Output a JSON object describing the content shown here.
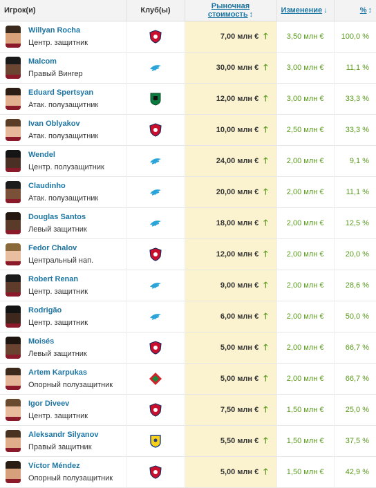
{
  "header": {
    "player_label": "Игрок(и)",
    "club_label": "Клуб(ы)",
    "market_value_label": "Рыночная стоимость",
    "market_value_sort_icon": "↕",
    "change_label": "Изменение",
    "change_sort_icon": "↓",
    "percent_label": "%",
    "percent_sort_icon": "↕"
  },
  "rows": [
    {
      "name": "Willyan Rocha",
      "position": "Центр. защитник",
      "club_crest": "cska-crest",
      "market_value": "7,00 млн €",
      "change": "3,50 млн €",
      "percent": "100,0 %"
    },
    {
      "name": "Malcom",
      "position": "Правый Вингер",
      "club_crest": "zenit-crest",
      "market_value": "30,00 млн €",
      "change": "3,00 млн €",
      "percent": "11,1 %"
    },
    {
      "name": "Eduard Spertsyan",
      "position": "Атак. полузащитник",
      "club_crest": "krasnodar-crest",
      "market_value": "12,00 млн €",
      "change": "3,00 млн €",
      "percent": "33,3 %"
    },
    {
      "name": "Ivan Oblyakov",
      "position": "Атак. полузащитник",
      "club_crest": "cska-crest",
      "market_value": "10,00 млн €",
      "change": "2,50 млн €",
      "percent": "33,3 %"
    },
    {
      "name": "Wendel",
      "position": "Центр. полузащитник",
      "club_crest": "zenit-crest",
      "market_value": "24,00 млн €",
      "change": "2,00 млн €",
      "percent": "9,1 %"
    },
    {
      "name": "Claudinho",
      "position": "Атак. полузащитник",
      "club_crest": "zenit-crest",
      "market_value": "20,00 млн €",
      "change": "2,00 млн €",
      "percent": "11,1 %"
    },
    {
      "name": "Douglas Santos",
      "position": "Левый защитник",
      "club_crest": "zenit-crest",
      "market_value": "18,00 млн €",
      "change": "2,00 млн €",
      "percent": "12,5 %"
    },
    {
      "name": "Fedor Chalov",
      "position": "Центральный нап.",
      "club_crest": "cska-crest",
      "market_value": "12,00 млн €",
      "change": "2,00 млн €",
      "percent": "20,0 %"
    },
    {
      "name": "Robert Renan",
      "position": "Центр. защитник",
      "club_crest": "zenit-crest",
      "market_value": "9,00 млн €",
      "change": "2,00 млн €",
      "percent": "28,6 %"
    },
    {
      "name": "Rodrigão",
      "position": "Центр. защитник",
      "club_crest": "zenit-crest",
      "market_value": "6,00 млн €",
      "change": "2,00 млн €",
      "percent": "50,0 %"
    },
    {
      "name": "Moisés",
      "position": "Левый защитник",
      "club_crest": "cska-crest",
      "market_value": "5,00 млн €",
      "change": "2,00 млн €",
      "percent": "66,7 %"
    },
    {
      "name": "Artem Karpukas",
      "position": "Опорный полузащитник",
      "club_crest": "lokomotiv-crest",
      "market_value": "5,00 млн €",
      "change": "2,00 млн €",
      "percent": "66,7 %"
    },
    {
      "name": "Igor Diveev",
      "position": "Центр. защитник",
      "club_crest": "cska-crest",
      "market_value": "7,50 млн €",
      "change": "1,50 млн €",
      "percent": "25,0 %"
    },
    {
      "name": "Aleksandr Silyanov",
      "position": "Правый защитник",
      "club_crest": "rostov-crest",
      "market_value": "5,50 млн €",
      "change": "1,50 млн €",
      "percent": "37,5 %"
    },
    {
      "name": "Víctor Méndez",
      "position": "Опорный полузащитник",
      "club_crest": "cska-crest",
      "market_value": "5,00 млн €",
      "change": "1,50 млн €",
      "percent": "42,9 %"
    }
  ],
  "colors": {
    "link": "#1d75a3",
    "positive": "#5a9a1e",
    "highlight_column": "#fbf3cf",
    "header_bg": "#f3f3f3"
  },
  "icons": {
    "value_trend": "arrow-up-icon"
  }
}
